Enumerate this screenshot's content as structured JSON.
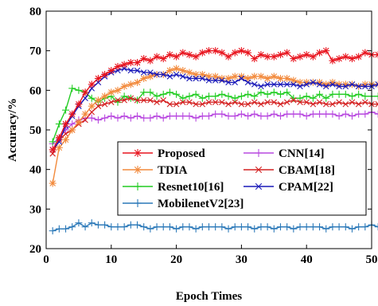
{
  "chart_data": {
    "type": "line",
    "xlabel": "Epoch Times",
    "ylabel": "Accuracy/%",
    "xlim": [
      0,
      50
    ],
    "ylim": [
      20,
      80
    ],
    "xticks": [
      "0",
      "10",
      "20",
      "30",
      "40",
      "50"
    ],
    "yticks": [
      "20",
      "30",
      "40",
      "50",
      "60",
      "70",
      "80"
    ],
    "grid": false,
    "legend_position": "center-right",
    "series": [
      {
        "name": "Proposed",
        "color": "#e8141e",
        "marker": "asterisk",
        "values": [
          45,
          48,
          51.5,
          54,
          56.5,
          59.5,
          61.5,
          63,
          64,
          65,
          66,
          66.5,
          67,
          67,
          68,
          67.5,
          68.5,
          68,
          69,
          68.5,
          69.5,
          69,
          68.5,
          69.5,
          70,
          70,
          69.5,
          68.5,
          69.5,
          70,
          69.5,
          68,
          69,
          68.5,
          68.5,
          69,
          69.5,
          68,
          68.5,
          69,
          68.5,
          69.5,
          70,
          67.5,
          68,
          68.5,
          68,
          68.5,
          69.5,
          69,
          69
        ]
      },
      {
        "name": "TDIA",
        "color": "#f28a3c",
        "marker": "asterisk",
        "values": [
          36.5,
          45.5,
          47.5,
          50,
          52,
          54,
          56,
          57.5,
          58.5,
          59.5,
          60,
          61,
          61.5,
          62,
          63,
          63.5,
          64,
          64,
          65,
          65.5,
          65,
          64.5,
          64,
          64,
          63.5,
          63.5,
          63,
          63,
          63.5,
          63.5,
          63,
          63.5,
          63.5,
          63,
          63.5,
          63,
          63,
          62.5,
          62,
          62,
          62,
          62,
          61.5,
          62,
          61.5,
          61.5,
          61.5,
          61,
          61.5,
          61.5,
          61.5
        ]
      },
      {
        "name": "Resnet10[16]",
        "color": "#22cc22",
        "marker": "plus",
        "values": [
          47,
          51.5,
          55,
          60.5,
          60,
          59.5,
          58,
          57,
          58,
          58.5,
          57,
          58.5,
          58,
          57.5,
          59.5,
          59.5,
          58.5,
          59,
          59.5,
          59,
          58,
          58.5,
          59,
          58,
          58.5,
          58.5,
          59,
          58.5,
          58,
          58.5,
          59,
          58.5,
          59.5,
          59,
          59.5,
          59,
          59.5,
          58,
          58,
          58.5,
          58,
          59,
          58,
          59,
          59,
          59,
          58.5,
          59,
          58.5,
          58.5,
          58.5
        ]
      },
      {
        "name": "MobilenetV2[23]",
        "color": "#2a78b8",
        "marker": "plus",
        "values": [
          24.5,
          25,
          25,
          25.5,
          26.5,
          25.5,
          26.5,
          26,
          26,
          25.5,
          25.5,
          25.5,
          26,
          26,
          25.5,
          25,
          25.5,
          25.5,
          25.5,
          25,
          25.5,
          25.5,
          25,
          25.5,
          25.5,
          25.5,
          25.5,
          25,
          25.5,
          25.5,
          25.5,
          25,
          25.5,
          25.5,
          25,
          25.5,
          25.5,
          25,
          25.5,
          25.5,
          25.5,
          25.5,
          25,
          25.5,
          25.5,
          25.5,
          25,
          25.5,
          25.5,
          26,
          25.5
        ]
      },
      {
        "name": "CNN[14]",
        "color": "#b94ae0",
        "marker": "plus",
        "values": [
          46.5,
          48,
          50,
          51.5,
          52.5,
          53,
          53,
          52.5,
          53,
          53.5,
          53,
          53.5,
          53,
          53.5,
          53,
          53,
          53.5,
          53,
          53.5,
          53.5,
          53.5,
          53.5,
          53,
          53.5,
          53.5,
          54,
          54,
          53.5,
          53.5,
          54,
          53.5,
          54,
          53.5,
          53.5,
          54,
          53.5,
          54,
          54,
          54,
          53.5,
          54,
          54,
          54,
          54,
          53.5,
          54,
          53.5,
          54,
          54,
          54.5,
          54
        ]
      },
      {
        "name": "CBAM[18]",
        "color": "#d42020",
        "marker": "x",
        "values": [
          44,
          47.5,
          49,
          50,
          51.5,
          52.5,
          54.5,
          56,
          56.5,
          57,
          57.5,
          57.5,
          58,
          57.5,
          57.5,
          57.5,
          57,
          57.5,
          56.5,
          56.5,
          57,
          57,
          56.5,
          56.5,
          57,
          57,
          57,
          56.5,
          57,
          56.5,
          56.5,
          57,
          56.5,
          57,
          57,
          56.5,
          57,
          57.5,
          57,
          57,
          56.5,
          57,
          56.5,
          56.5,
          57,
          56.5,
          57,
          56.5,
          57,
          56.5,
          56.5
        ]
      },
      {
        "name": "CPAM[22]",
        "color": "#1818b8",
        "marker": "x",
        "values": [
          45,
          47,
          51,
          53.5,
          56,
          58,
          60.5,
          62,
          63.5,
          64.5,
          65,
          65.5,
          65,
          65,
          64.5,
          64.5,
          64,
          64,
          63.5,
          64,
          63.5,
          63,
          63,
          63,
          62.5,
          62.5,
          62.5,
          62,
          62,
          63,
          62,
          61.5,
          61,
          61.5,
          61.5,
          61.5,
          61.5,
          61.5,
          61,
          61.5,
          62,
          61.5,
          61,
          61.5,
          61,
          61,
          61.5,
          61,
          61,
          61,
          61.5
        ]
      }
    ]
  }
}
